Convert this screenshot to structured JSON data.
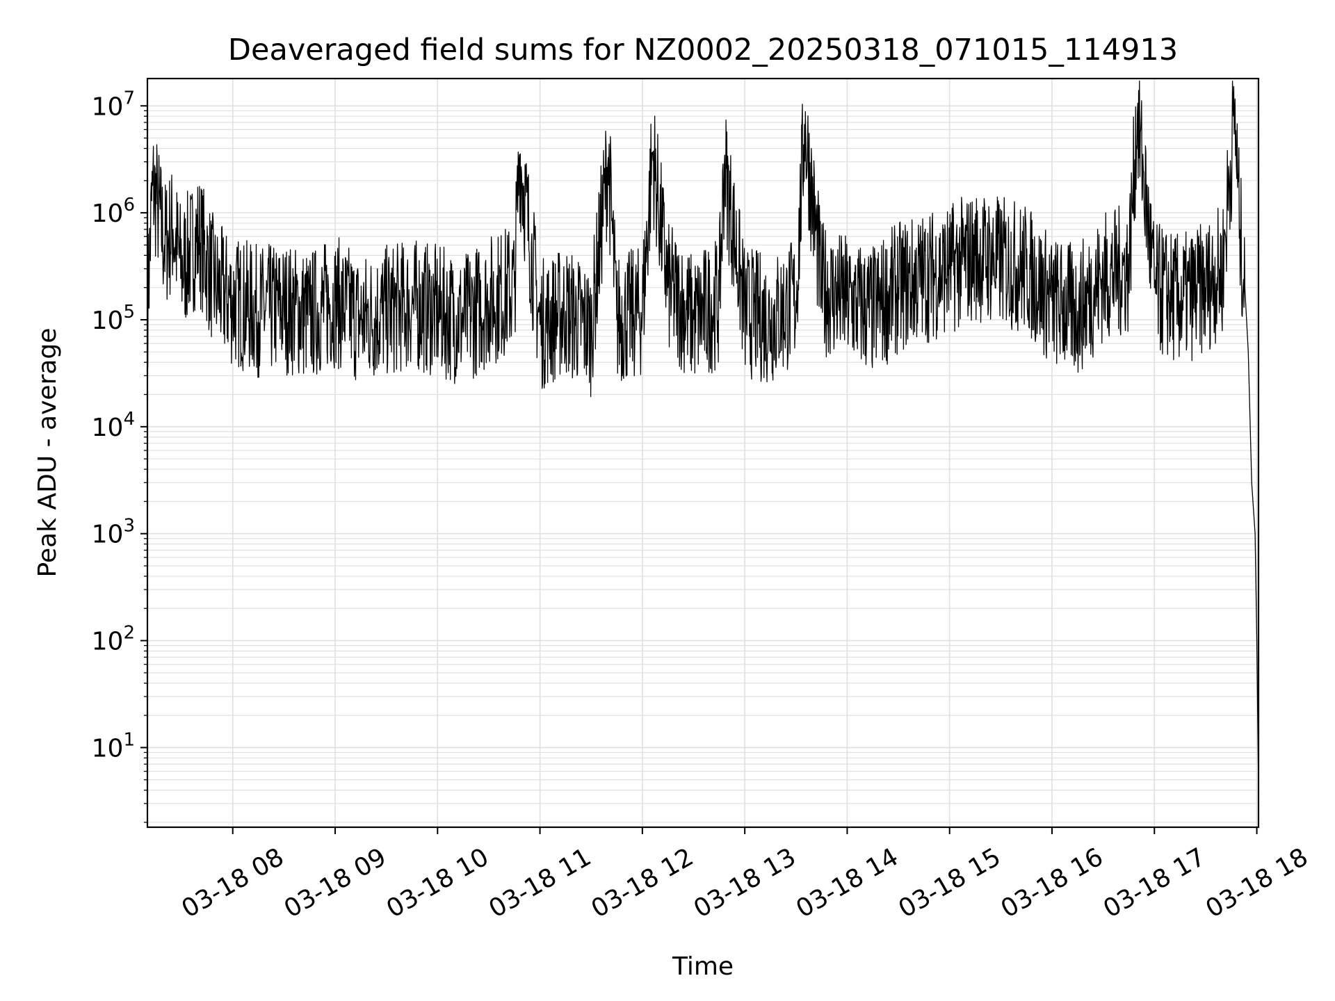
{
  "chart_data": {
    "type": "line",
    "title": "Deaveraged field sums for NZ0002_20250318_071015_114913",
    "xlabel": "Time",
    "ylabel": "Peak ADU - average",
    "yscale": "log",
    "grid": true,
    "line_color": "#000000",
    "grid_color": "#e0e0e0",
    "x_tick_labels": [
      "03-18 08",
      "03-18 09",
      "03-18 10",
      "03-18 11",
      "03-18 12",
      "03-18 13",
      "03-18 14",
      "03-18 15",
      "03-18 16",
      "03-18 17",
      "03-18 18"
    ],
    "y_tick_labels": [
      {
        "base": "10",
        "exp": "1"
      },
      {
        "base": "10",
        "exp": "2"
      },
      {
        "base": "10",
        "exp": "3"
      },
      {
        "base": "10",
        "exp": "4"
      },
      {
        "base": "10",
        "exp": "5"
      },
      {
        "base": "10",
        "exp": "6"
      },
      {
        "base": "10",
        "exp": "7"
      }
    ],
    "x_range": [
      "2025-03-18 07:10",
      "2025-03-18 18:01"
    ],
    "ylim": [
      1.8,
      18000000
    ],
    "series": [
      {
        "x": [
          "2025-03-18 07:10",
          "2025-03-18 07:13",
          "2025-03-18 07:16",
          "2025-03-18 07:20",
          "2025-03-18 07:25",
          "2025-03-18 07:30",
          "2025-03-18 07:40",
          "2025-03-18 07:50",
          "2025-03-18 08:00",
          "2025-03-18 08:15",
          "2025-03-18 08:30",
          "2025-03-18 08:45",
          "2025-03-18 09:00",
          "2025-03-18 09:15",
          "2025-03-18 09:30",
          "2025-03-18 09:45",
          "2025-03-18 10:00",
          "2025-03-18 10:15",
          "2025-03-18 10:30",
          "2025-03-18 10:45",
          "2025-03-18 10:48",
          "2025-03-18 11:00",
          "2025-03-18 11:15",
          "2025-03-18 11:30",
          "2025-03-18 11:40",
          "2025-03-18 11:45",
          "2025-03-18 12:00",
          "2025-03-18 12:06",
          "2025-03-18 12:15",
          "2025-03-18 12:30",
          "2025-03-18 12:45",
          "2025-03-18 12:48",
          "2025-03-18 13:00",
          "2025-03-18 13:15",
          "2025-03-18 13:30",
          "2025-03-18 13:35",
          "2025-03-18 13:45",
          "2025-03-18 14:00",
          "2025-03-18 14:15",
          "2025-03-18 14:30",
          "2025-03-18 14:45",
          "2025-03-18 15:00",
          "2025-03-18 15:15",
          "2025-03-18 15:30",
          "2025-03-18 15:45",
          "2025-03-18 16:00",
          "2025-03-18 16:15",
          "2025-03-18 16:30",
          "2025-03-18 16:45",
          "2025-03-18 16:50",
          "2025-03-18 17:00",
          "2025-03-18 17:15",
          "2025-03-18 17:30",
          "2025-03-18 17:40",
          "2025-03-18 17:47",
          "2025-03-18 17:50",
          "2025-03-18 17:53",
          "2025-03-18 17:55",
          "2025-03-18 17:57",
          "2025-03-18 17:59",
          "2025-03-18 18:00",
          "2025-03-18 18:01"
        ],
        "y": [
          120000,
          1800000,
          1200000,
          500000,
          700000,
          300000,
          600000,
          200000,
          150000,
          120000,
          130000,
          110000,
          150000,
          100000,
          120000,
          140000,
          120000,
          100000,
          150000,
          200000,
          3500000,
          90000,
          120000,
          80000,
          3300000,
          100000,
          120000,
          3700000,
          200000,
          100000,
          150000,
          2800000,
          120000,
          100000,
          150000,
          6700000,
          200000,
          150000,
          120000,
          200000,
          250000,
          300000,
          400000,
          350000,
          300000,
          150000,
          120000,
          250000,
          300000,
          8500000,
          200000,
          150000,
          200000,
          300000,
          9000000,
          700000,
          200000,
          50000,
          3000,
          1000,
          100,
          4
        ]
      }
    ]
  }
}
